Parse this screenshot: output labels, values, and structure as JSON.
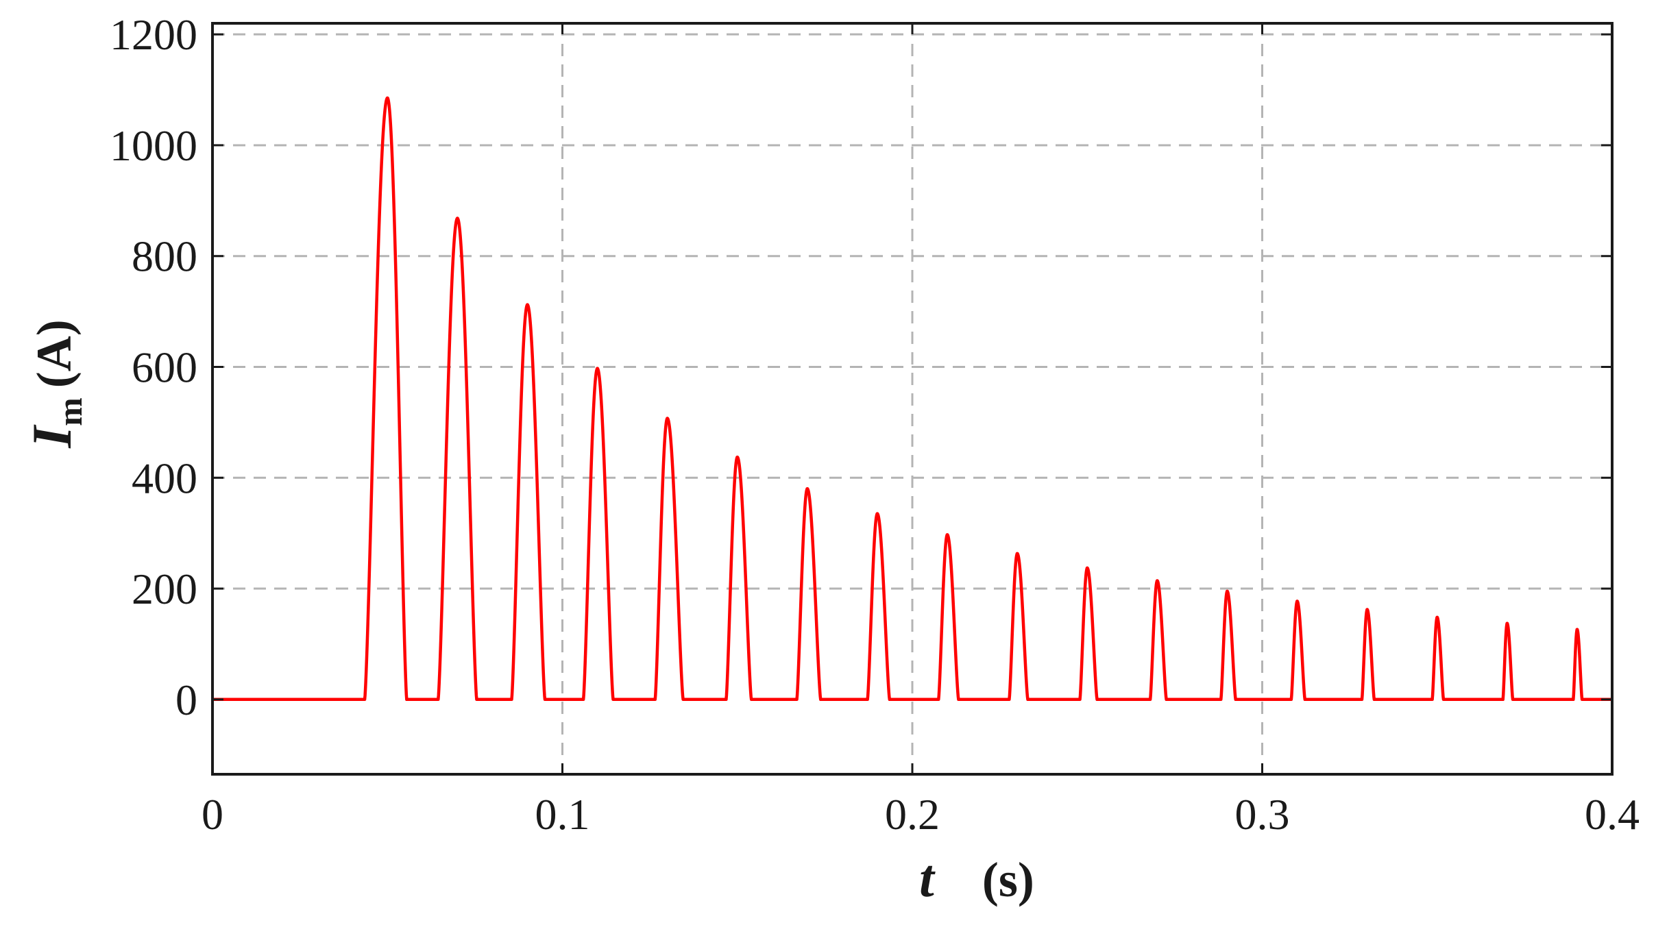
{
  "chart_data": {
    "type": "line",
    "title": "",
    "xlabel": {
      "symbol": "t",
      "unit": "(s)"
    },
    "ylabel": {
      "symbol": "I",
      "subscript": "m",
      "unit": "(A)"
    },
    "xlim": [
      0,
      0.4
    ],
    "ylim": [
      -135,
      1220
    ],
    "x_ticks": [
      0,
      0.1,
      0.2,
      0.3,
      0.4
    ],
    "x_tick_labels": [
      "0",
      "0.1",
      "0.2",
      "0.3",
      "0.4"
    ],
    "y_ticks": [
      0,
      200,
      400,
      600,
      800,
      1000,
      1200
    ],
    "y_tick_labels": [
      "0",
      "200",
      "400",
      "600",
      "800",
      "1000",
      "1200"
    ],
    "grid": true,
    "grid_style": "dashed",
    "legend": "none",
    "series": [
      {
        "color": "#ff0000",
        "baseline": 0,
        "pulse_period_s": 0.02,
        "pulses": [
          {
            "peak_t": 0.05,
            "peak": 1085,
            "start_t": 0.0435,
            "end_t": 0.0555
          },
          {
            "peak_t": 0.07,
            "peak": 868,
            "start_t": 0.0645,
            "end_t": 0.0755
          },
          {
            "peak_t": 0.09,
            "peak": 712,
            "start_t": 0.0855,
            "end_t": 0.095
          },
          {
            "peak_t": 0.11,
            "peak": 597,
            "start_t": 0.106,
            "end_t": 0.1145
          },
          {
            "peak_t": 0.13,
            "peak": 507,
            "start_t": 0.1265,
            "end_t": 0.1345
          },
          {
            "peak_t": 0.15,
            "peak": 437,
            "start_t": 0.1468,
            "end_t": 0.154
          },
          {
            "peak_t": 0.17,
            "peak": 380,
            "start_t": 0.167,
            "end_t": 0.1738
          },
          {
            "peak_t": 0.19,
            "peak": 335,
            "start_t": 0.1872,
            "end_t": 0.1935
          },
          {
            "peak_t": 0.21,
            "peak": 297,
            "start_t": 0.2075,
            "end_t": 0.2132
          },
          {
            "peak_t": 0.23,
            "peak": 263,
            "start_t": 0.2277,
            "end_t": 0.233
          },
          {
            "peak_t": 0.25,
            "peak": 237,
            "start_t": 0.2479,
            "end_t": 0.2528
          },
          {
            "peak_t": 0.27,
            "peak": 214,
            "start_t": 0.268,
            "end_t": 0.2726
          },
          {
            "peak_t": 0.29,
            "peak": 195,
            "start_t": 0.2882,
            "end_t": 0.2924
          },
          {
            "peak_t": 0.31,
            "peak": 177,
            "start_t": 0.3083,
            "end_t": 0.3122
          },
          {
            "peak_t": 0.33,
            "peak": 162,
            "start_t": 0.3285,
            "end_t": 0.332
          },
          {
            "peak_t": 0.35,
            "peak": 148,
            "start_t": 0.3486,
            "end_t": 0.3518
          },
          {
            "peak_t": 0.37,
            "peak": 137,
            "start_t": 0.3688,
            "end_t": 0.3716
          },
          {
            "peak_t": 0.39,
            "peak": 126,
            "start_t": 0.3889,
            "end_t": 0.3914
          }
        ]
      }
    ]
  }
}
